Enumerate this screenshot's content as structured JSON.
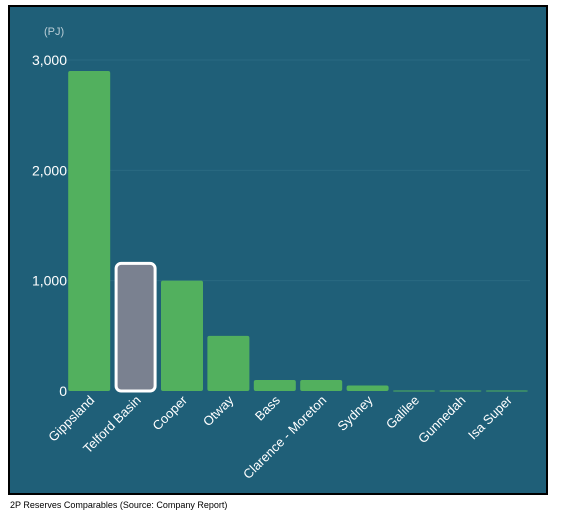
{
  "caption": "2P Reserves Comparables (Source: Company Report)",
  "colors": {
    "background": "#1f5f78",
    "bar": "#52b05e",
    "highlight_bar": "#7a8190",
    "highlight_border": "#ffffff",
    "gridline": "#2a6a82"
  },
  "chart_data": {
    "type": "bar",
    "unit_label": "(PJ)",
    "categories": [
      "Gippsland",
      "Telford Basin",
      "Cooper",
      "Otway",
      "Bass",
      "Clarence - Moreton",
      "Sydney",
      "Galilee",
      "Gunnedah",
      "Isa Super"
    ],
    "values": [
      2900,
      1170,
      1000,
      500,
      100,
      100,
      50,
      5,
      5,
      5
    ],
    "highlight": "Telford Basin",
    "yticks": [
      0,
      1000,
      2000,
      3000
    ],
    "ytick_labels": [
      "0",
      "1,000",
      "2,000",
      "3,000"
    ],
    "ylim": [
      0,
      3000
    ],
    "grid": true,
    "title": "",
    "xlabel": "",
    "ylabel": ""
  }
}
